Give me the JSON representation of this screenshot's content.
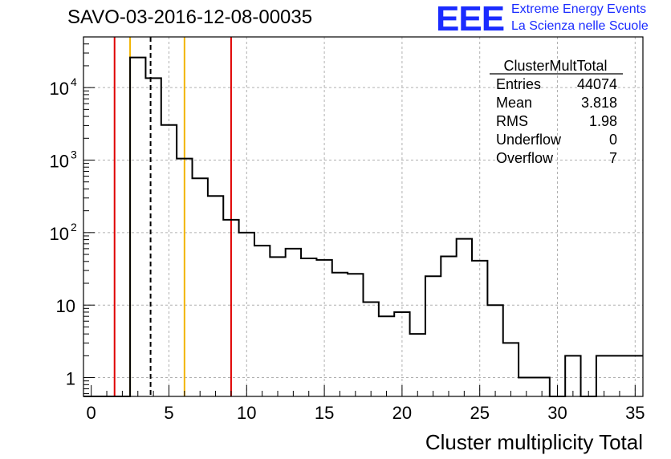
{
  "header": {
    "run_title": "SAVO-03-2016-12-08-00035",
    "logo_text": "EEE",
    "logo_line1": "Extreme Energy Events",
    "logo_line2": "La Scienza nelle Scuole"
  },
  "colors": {
    "histogram": "#000000",
    "red_lines": "#e00000",
    "yellow_lines": "#f2b400",
    "logo": "#1a2bff",
    "grid": "#b0b0b0"
  },
  "stats": {
    "title": "ClusterMultTotal",
    "rows": [
      {
        "label": "Entries",
        "value": "44074"
      },
      {
        "label": "Mean",
        "value": "3.818"
      },
      {
        "label": "RMS",
        "value": "1.98"
      },
      {
        "label": "Underflow",
        "value": "0"
      },
      {
        "label": "Overflow",
        "value": "7"
      }
    ]
  },
  "chart_data": {
    "type": "histogram",
    "title": "SAVO-03-2016-12-08-00035",
    "xlabel": "Cluster multiplicity Total",
    "ylabel": "",
    "xlim": [
      -0.5,
      35.5
    ],
    "ylim": [
      0.55,
      50000
    ],
    "yscale": "log",
    "grid": true,
    "bin_width": 1,
    "bin_low_edges": [
      -0.5,
      0.5,
      1.5,
      2.5,
      3.5,
      4.5,
      5.5,
      6.5,
      7.5,
      8.5,
      9.5,
      10.5,
      11.5,
      12.5,
      13.5,
      14.5,
      15.5,
      16.5,
      17.5,
      18.5,
      19.5,
      20.5,
      21.5,
      22.5,
      23.5,
      24.5,
      25.5,
      26.5,
      27.5,
      28.5,
      29.5,
      30.5,
      31.5,
      32.5,
      33.5,
      34.5
    ],
    "values": [
      0,
      0,
      0,
      26000,
      13500,
      3050,
      1050,
      560,
      320,
      150,
      100,
      66,
      46,
      60,
      44,
      42,
      28,
      27,
      11,
      7,
      8,
      4,
      25,
      47,
      82,
      41,
      10,
      3,
      1,
      1,
      0,
      2,
      0,
      2,
      2,
      2
    ],
    "x_ticks": [
      "0",
      "5",
      "10",
      "15",
      "20",
      "25",
      "30",
      "35"
    ],
    "x_tick_values": [
      0,
      5,
      10,
      15,
      20,
      25,
      30,
      35
    ],
    "y_ticks": [
      {
        "value": 1,
        "label": "1"
      },
      {
        "value": 10,
        "label": "10"
      },
      {
        "value": 100,
        "label": "10",
        "exp": "2"
      },
      {
        "value": 1000,
        "label": "10",
        "exp": "3"
      },
      {
        "value": 10000,
        "label": "10",
        "exp": "4"
      }
    ],
    "vertical_lines": [
      {
        "x": 1.5,
        "color": "red",
        "style": "solid"
      },
      {
        "x": 2.5,
        "color": "yellow",
        "style": "solid"
      },
      {
        "x": 3.818,
        "color": "black",
        "style": "dashed"
      },
      {
        "x": 6.0,
        "color": "yellow",
        "style": "solid"
      },
      {
        "x": 9.0,
        "color": "red",
        "style": "solid"
      }
    ]
  }
}
